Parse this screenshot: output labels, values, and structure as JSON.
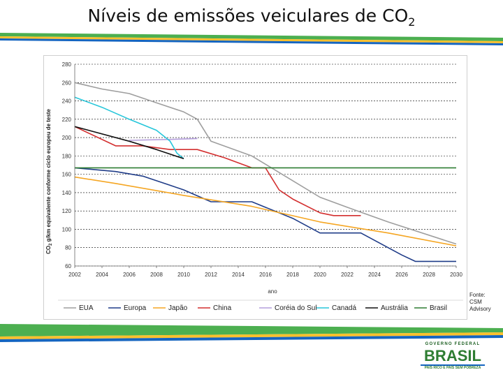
{
  "slide": {
    "title": "Níveis de emissões veiculares de CO",
    "title_subscript": "2"
  },
  "source": {
    "lines": [
      "Fonte:",
      "CSM",
      "Advisory"
    ]
  },
  "brand": {
    "gov_label": "GOVERNO FEDERAL",
    "name": "BRASIL",
    "slogan": "PAÍS RICO É PAÍS SEM POBREZA"
  },
  "colors": {
    "bar_green": "#4caf50",
    "bar_yellow": "#fbc02d",
    "bar_blue": "#1565c0"
  },
  "chart_data": {
    "type": "line",
    "title": "",
    "xlabel": "ano",
    "ylabel": "CO2 g/km equivalente conforme ciclo europeu de teste",
    "ylabel_prefix": "CO",
    "ylabel_sub": "2",
    "ylabel_rest": " g/km equivalente conforme ciclo europeu de teste",
    "xlim": [
      2002,
      2030
    ],
    "ylim": [
      60,
      280
    ],
    "x_ticks": [
      "2002",
      "2004",
      "2006",
      "2008",
      "2010",
      "2012",
      "2014",
      "2016",
      "2018",
      "2020",
      "2022",
      "2024",
      "2026",
      "2028",
      "2030"
    ],
    "y_ticks": [
      "60",
      "80",
      "100",
      "120",
      "140",
      "160",
      "180",
      "200",
      "220",
      "240",
      "260",
      "280"
    ],
    "grid": "horizontal",
    "legend_position": "bottom",
    "series": [
      {
        "name": "EUA",
        "color": "#9e9e9e",
        "dashed": false,
        "points": [
          [
            2002,
            260
          ],
          [
            2004,
            253
          ],
          [
            2006,
            248
          ],
          [
            2008,
            238
          ],
          [
            2010,
            228
          ],
          [
            2011,
            220
          ],
          [
            2012,
            196
          ],
          [
            2015,
            180
          ],
          [
            2020,
            135
          ],
          [
            2022,
            124
          ],
          [
            2025,
            108
          ],
          [
            2030,
            84
          ]
        ]
      },
      {
        "name": "Europa",
        "color": "#1f3c88",
        "dashed": false,
        "points": [
          [
            2002,
            167
          ],
          [
            2005,
            163
          ],
          [
            2007,
            158
          ],
          [
            2009,
            148
          ],
          [
            2010,
            143
          ],
          [
            2012,
            130
          ],
          [
            2015,
            130
          ],
          [
            2018,
            112
          ],
          [
            2020,
            96
          ],
          [
            2023,
            96
          ],
          [
            2025,
            80
          ],
          [
            2026,
            72
          ],
          [
            2027,
            65
          ],
          [
            2030,
            65
          ]
        ]
      },
      {
        "name": "Japão",
        "color": "#f5a623",
        "dashed": false,
        "points": [
          [
            2002,
            157
          ],
          [
            2005,
            150
          ],
          [
            2010,
            137
          ],
          [
            2015,
            125
          ],
          [
            2020,
            108
          ],
          [
            2025,
            96
          ],
          [
            2030,
            82
          ]
        ]
      },
      {
        "name": "China",
        "color": "#d32f2f",
        "dashed": false,
        "points": [
          [
            2002,
            212
          ],
          [
            2005,
            191
          ],
          [
            2007,
            191
          ],
          [
            2009,
            187
          ],
          [
            2011,
            187
          ],
          [
            2013,
            178
          ],
          [
            2015,
            167
          ],
          [
            2016,
            167
          ],
          [
            2017,
            143
          ],
          [
            2018,
            133
          ],
          [
            2020,
            118
          ],
          [
            2021,
            115
          ],
          [
            2023,
            115
          ]
        ]
      },
      {
        "name": "Coréia do Sul",
        "color": "#b39ddb",
        "dashed": false,
        "points": [
          [
            2006,
            197
          ],
          [
            2009,
            198
          ],
          [
            2011,
            199
          ]
        ]
      },
      {
        "name": "Canadá",
        "color": "#26c6da",
        "dashed": false,
        "points": [
          [
            2002,
            244
          ],
          [
            2004,
            233
          ],
          [
            2006,
            220
          ],
          [
            2008,
            208
          ],
          [
            2009,
            196
          ],
          [
            2009.5,
            183
          ],
          [
            2010,
            177
          ]
        ]
      },
      {
        "name": "Austrália",
        "color": "#111111",
        "dashed": false,
        "points": [
          [
            2002,
            212
          ],
          [
            2006,
            196
          ],
          [
            2008,
            187
          ],
          [
            2010,
            177
          ]
        ]
      },
      {
        "name": "Brasil",
        "color": "#2e7d32",
        "dashed": false,
        "points": [
          [
            2002,
            167
          ],
          [
            2030,
            167
          ]
        ]
      }
    ]
  }
}
